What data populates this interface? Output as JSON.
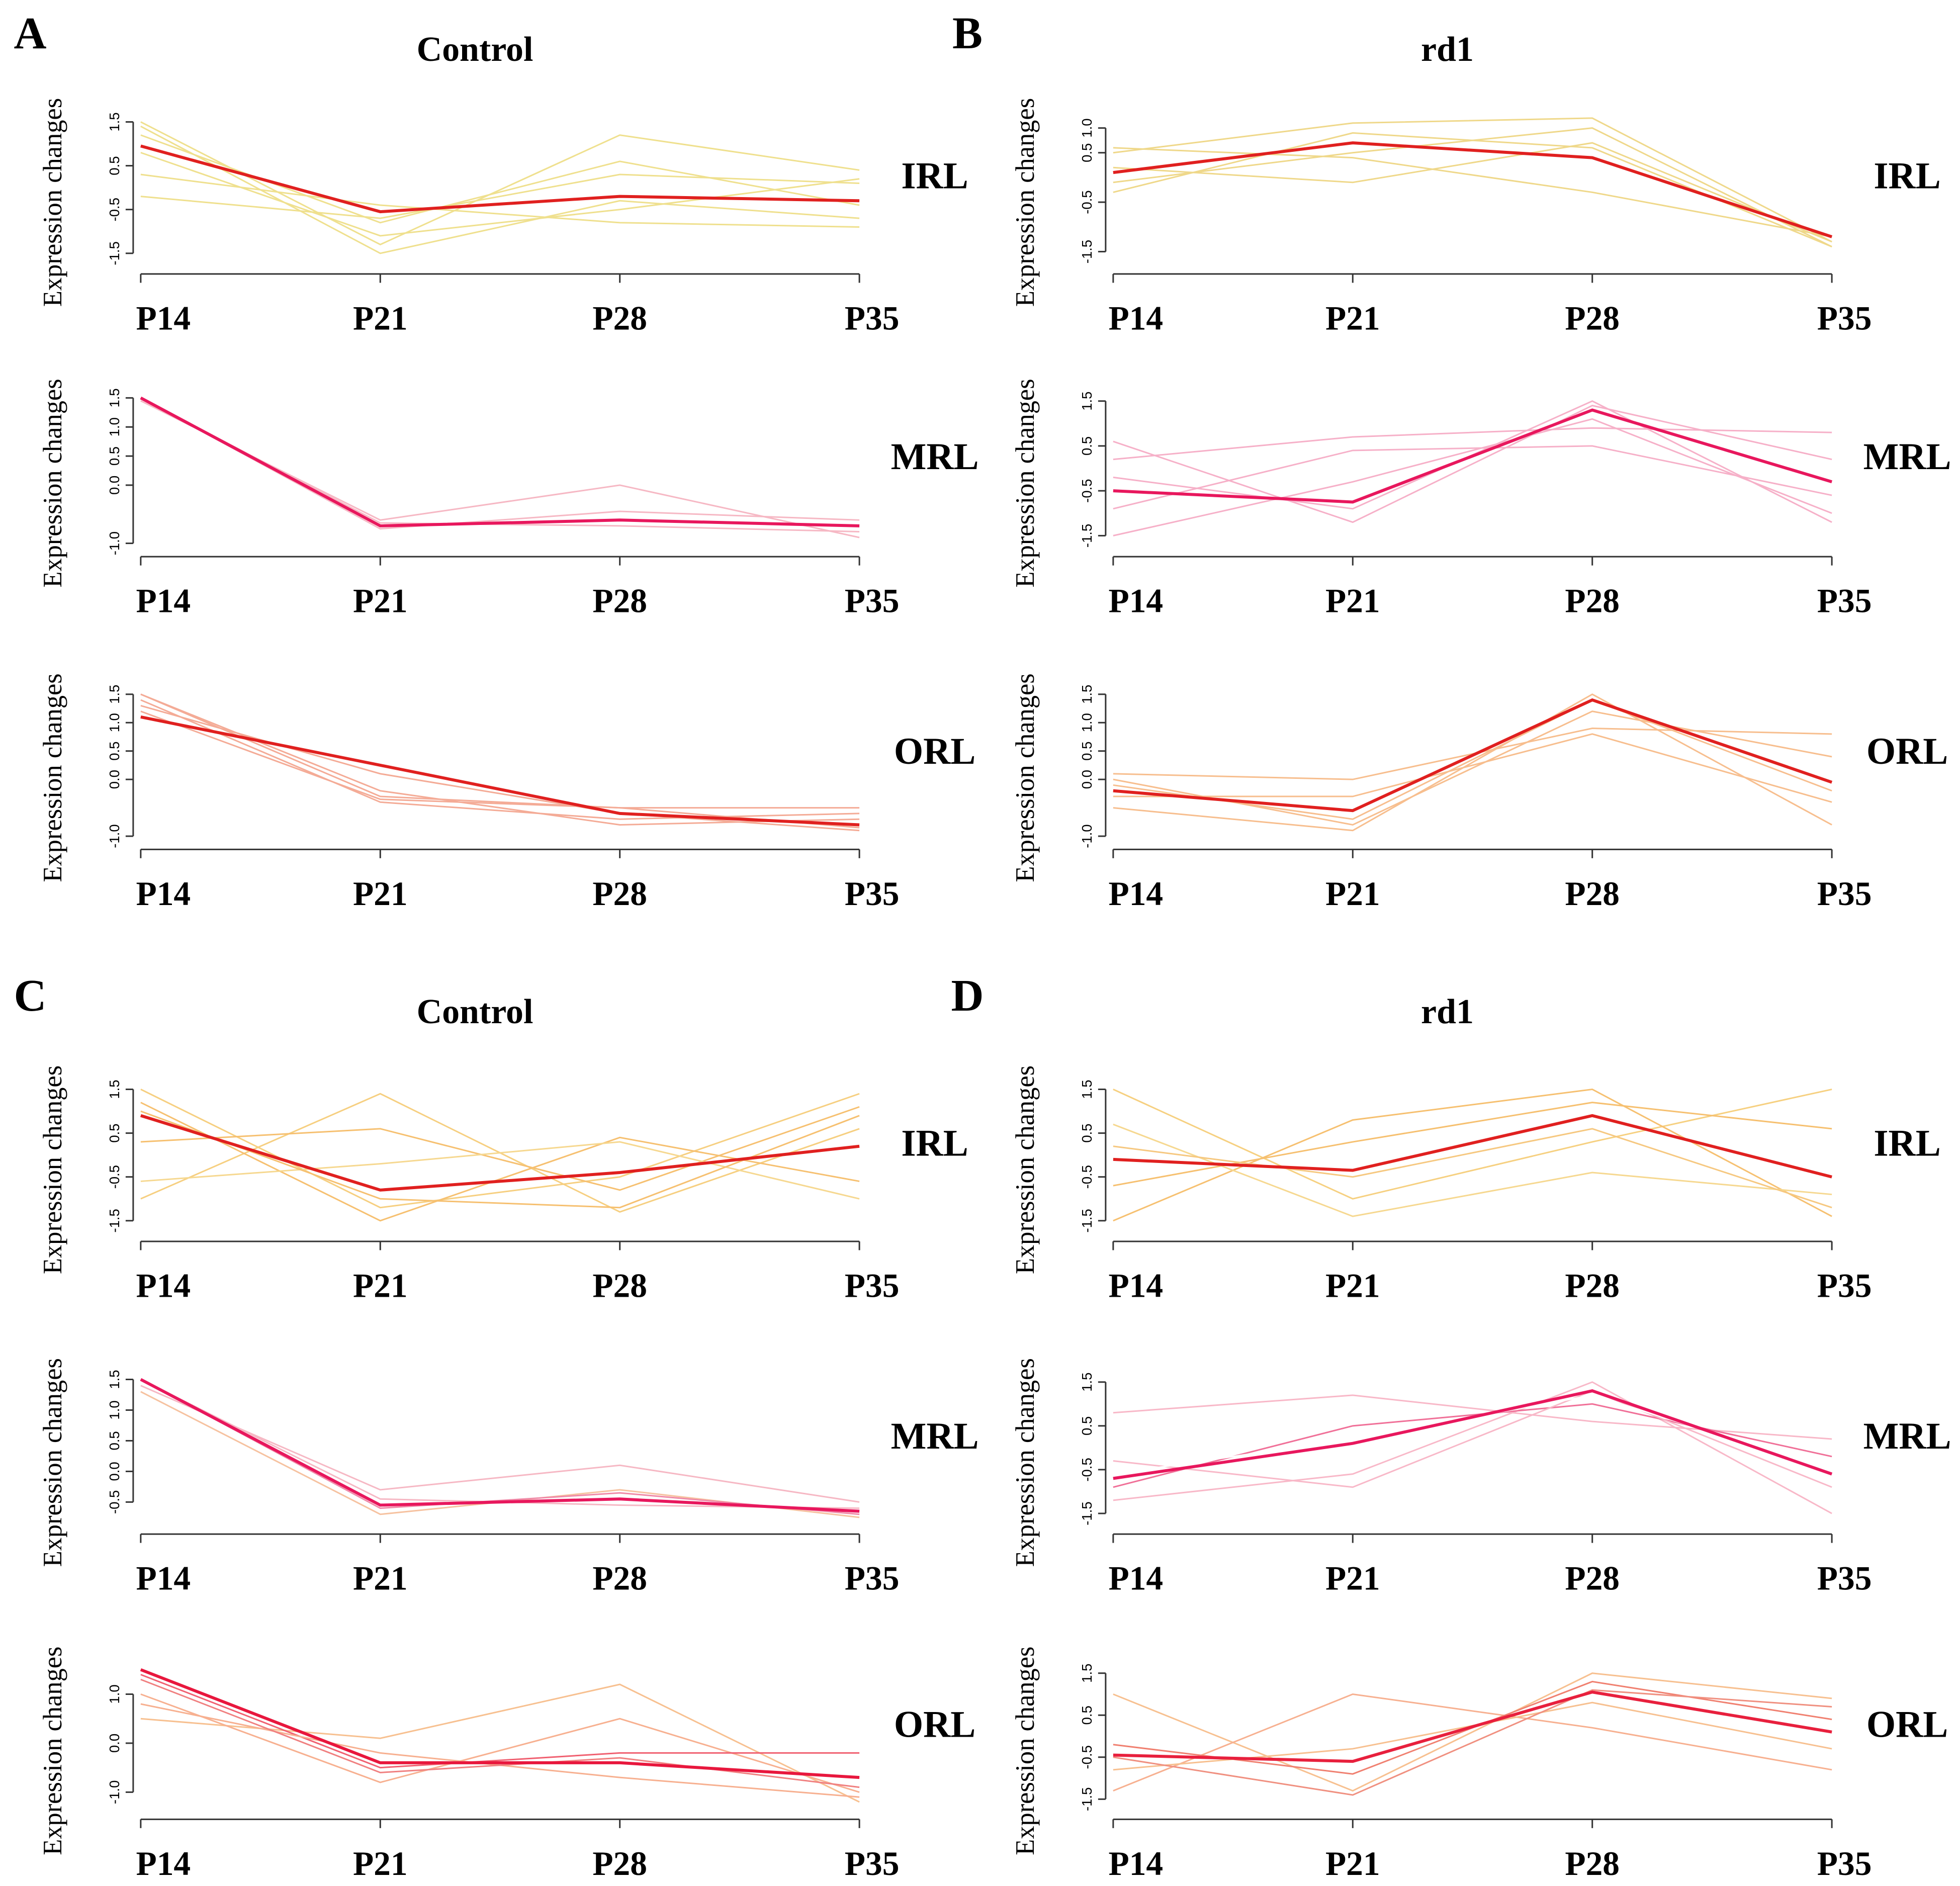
{
  "chart_data": [
    {
      "type": "line",
      "panel_label": "A",
      "title": "Control",
      "annotation": "IRL",
      "ylabel": "Expression changes",
      "categories": [
        "P14",
        "P21",
        "P28",
        "P35"
      ],
      "ylim": [
        -1.8,
        1.7
      ],
      "yticks": [
        -1.5,
        -0.5,
        0.5,
        1.5
      ],
      "series": [
        {
          "color": "#efe08e",
          "values": [
            1.5,
            -1.3,
            1.2,
            0.4
          ]
        },
        {
          "color": "#efe08e",
          "values": [
            1.2,
            -0.8,
            0.6,
            -0.4
          ]
        },
        {
          "color": "#efe08e",
          "values": [
            0.8,
            -1.1,
            -0.5,
            0.2
          ]
        },
        {
          "color": "#efe08e",
          "values": [
            0.3,
            -0.4,
            -0.8,
            -0.9
          ]
        },
        {
          "color": "#efe08e",
          "values": [
            -0.2,
            -0.7,
            0.3,
            0.1
          ]
        },
        {
          "color": "#efe08e",
          "values": [
            1.4,
            -1.5,
            -0.3,
            -0.7
          ]
        },
        {
          "color": "#e0201f",
          "values": [
            0.95,
            -0.55,
            -0.2,
            -0.3
          ]
        }
      ]
    },
    {
      "type": "line",
      "annotation": "MRL",
      "ylabel": "Expression changes",
      "categories": [
        "P14",
        "P21",
        "P28",
        "P35"
      ],
      "ylim": [
        -1.1,
        1.6
      ],
      "yticks": [
        {
          "value": -1,
          "label": "-1.0"
        },
        {
          "value": 0,
          "label": "0.0"
        },
        0.5,
        {
          "value": 1,
          "label": "1.0"
        },
        1.5
      ],
      "series": [
        {
          "color": "#f6b8c4",
          "values": [
            1.45,
            -0.6,
            0.0,
            -0.9
          ]
        },
        {
          "color": "#f6b8c4",
          "values": [
            1.5,
            -0.75,
            -0.45,
            -0.6
          ]
        },
        {
          "color": "#f6b8c4",
          "values": [
            1.5,
            -0.65,
            -0.7,
            -0.8
          ]
        },
        {
          "color": "#e8175d",
          "values": [
            1.5,
            -0.7,
            -0.6,
            -0.7
          ]
        }
      ]
    },
    {
      "type": "line",
      "annotation": "ORL",
      "ylabel": "Expression changes",
      "categories": [
        "P14",
        "P21",
        "P28",
        "P35"
      ],
      "ylim": [
        -1.1,
        1.6
      ],
      "yticks": [
        {
          "value": -1,
          "label": "-1.0"
        },
        {
          "value": 0,
          "label": "0.0"
        },
        0.5,
        {
          "value": 1,
          "label": "1.0"
        },
        1.5
      ],
      "series": [
        {
          "color": "#f4ab96",
          "values": [
            1.5,
            -0.3,
            -0.5,
            -0.5
          ]
        },
        {
          "color": "#f4ab96",
          "values": [
            1.4,
            -0.4,
            -0.7,
            -0.6
          ]
        },
        {
          "color": "#f4ab96",
          "values": [
            1.3,
            0.1,
            -0.6,
            -0.9
          ]
        },
        {
          "color": "#f4ab96",
          "values": [
            1.5,
            -0.2,
            -0.8,
            -0.7
          ]
        },
        {
          "color": "#f4ab96",
          "values": [
            1.2,
            -0.35,
            -0.5,
            -0.85
          ]
        },
        {
          "color": "#e0201f",
          "values": [
            1.1,
            0.25,
            -0.6,
            -0.8
          ]
        }
      ]
    },
    {
      "type": "line",
      "panel_label": "B",
      "title": "rd1",
      "annotation": "IRL",
      "ylabel": "Expression changes",
      "categories": [
        "P14",
        "P21",
        "P28",
        "P35"
      ],
      "ylim": [
        -1.8,
        1.3
      ],
      "yticks": [
        -1.5,
        -0.5,
        0.5,
        {
          "value": 1,
          "label": "1.0"
        }
      ],
      "series": [
        {
          "color": "#efd88a",
          "values": [
            0.5,
            1.1,
            1.2,
            -1.3
          ]
        },
        {
          "color": "#efd88a",
          "values": [
            -0.3,
            0.9,
            0.6,
            -1.4
          ]
        },
        {
          "color": "#efd88a",
          "values": [
            0.2,
            -0.1,
            0.7,
            -1.3
          ]
        },
        {
          "color": "#efd88a",
          "values": [
            0.6,
            0.4,
            -0.3,
            -1.2
          ]
        },
        {
          "color": "#efd88a",
          "values": [
            -0.1,
            0.5,
            1.0,
            -1.4
          ]
        },
        {
          "color": "#e0201f",
          "values": [
            0.1,
            0.7,
            0.4,
            -1.2
          ]
        }
      ]
    },
    {
      "type": "line",
      "annotation": "MRL",
      "ylabel": "Expression changes",
      "categories": [
        "P14",
        "P21",
        "P28",
        "P35"
      ],
      "ylim": [
        -1.8,
        1.7
      ],
      "yticks": [
        -1.5,
        -0.5,
        0.5,
        1.5
      ],
      "series": [
        {
          "color": "#f6b0c8",
          "values": [
            0.2,
            0.7,
            0.9,
            0.8
          ]
        },
        {
          "color": "#f6b0c8",
          "values": [
            -1.5,
            -0.3,
            1.1,
            -1.0
          ]
        },
        {
          "color": "#f6b0c8",
          "values": [
            0.6,
            -1.2,
            1.4,
            0.2
          ]
        },
        {
          "color": "#f6b0c8",
          "values": [
            -0.9,
            0.4,
            0.5,
            -0.6
          ]
        },
        {
          "color": "#f6b0c8",
          "values": [
            -0.2,
            -0.9,
            1.5,
            -1.2
          ]
        },
        {
          "color": "#e8175d",
          "values": [
            -0.5,
            -0.75,
            1.3,
            -0.3
          ]
        }
      ]
    },
    {
      "type": "line",
      "annotation": "ORL",
      "ylabel": "Expression changes",
      "categories": [
        "P14",
        "P21",
        "P28",
        "P35"
      ],
      "ylim": [
        -1.1,
        1.6
      ],
      "yticks": [
        {
          "value": -1,
          "label": "-1.0"
        },
        {
          "value": 0,
          "label": "0.0"
        },
        0.5,
        {
          "value": 1,
          "label": "1.0"
        },
        1.5
      ],
      "series": [
        {
          "color": "#f7be8e",
          "values": [
            0.1,
            0.0,
            0.9,
            0.8
          ]
        },
        {
          "color": "#f7be8e",
          "values": [
            -0.5,
            -0.9,
            1.5,
            -0.8
          ]
        },
        {
          "color": "#f7be8e",
          "values": [
            0.0,
            -0.8,
            1.2,
            0.4
          ]
        },
        {
          "color": "#f7be8e",
          "values": [
            -0.3,
            -0.3,
            0.8,
            -0.4
          ]
        },
        {
          "color": "#f7be8e",
          "values": [
            -0.1,
            -0.7,
            1.4,
            -0.2
          ]
        },
        {
          "color": "#e0201f",
          "values": [
            -0.2,
            -0.55,
            1.4,
            -0.05
          ]
        }
      ]
    },
    {
      "type": "line",
      "panel_label": "C",
      "title": "Control",
      "annotation": "IRL",
      "ylabel": "Expression changes",
      "categories": [
        "P14",
        "P21",
        "P28",
        "P35"
      ],
      "ylim": [
        -1.8,
        1.7
      ],
      "yticks": [
        -1.5,
        -0.5,
        0.5,
        1.5
      ],
      "series": [
        {
          "color": "#f6cf80",
          "values": [
            1.5,
            -1.2,
            -0.5,
            1.4
          ]
        },
        {
          "color": "#f6cf80",
          "values": [
            -1.0,
            1.4,
            -1.3,
            0.6
          ]
        },
        {
          "color": "#f6c070",
          "values": [
            1.2,
            -1.5,
            0.4,
            -0.6
          ]
        },
        {
          "color": "#f6c070",
          "values": [
            0.3,
            0.6,
            -0.8,
            1.1
          ]
        },
        {
          "color": "#f6d890",
          "values": [
            -0.6,
            -0.2,
            0.3,
            -1.0
          ]
        },
        {
          "color": "#f6c070",
          "values": [
            1.0,
            -1.0,
            -1.2,
            0.9
          ]
        },
        {
          "color": "#e0201f",
          "values": [
            0.9,
            -0.8,
            -0.4,
            0.2
          ]
        }
      ]
    },
    {
      "type": "line",
      "annotation": "MRL",
      "ylabel": "Expression changes",
      "categories": [
        "P14",
        "P21",
        "P28",
        "P35"
      ],
      "ylim": [
        -0.9,
        1.6
      ],
      "yticks": [
        -0.5,
        {
          "value": 0,
          "label": "0.0"
        },
        0.5,
        {
          "value": 1,
          "label": "1.0"
        },
        1.5
      ],
      "series": [
        {
          "color": "#f6b8c4",
          "values": [
            1.4,
            -0.3,
            0.1,
            -0.5
          ]
        },
        {
          "color": "#f6c2a0",
          "values": [
            1.3,
            -0.7,
            -0.3,
            -0.75
          ]
        },
        {
          "color": "#f6b8c4",
          "values": [
            1.5,
            -0.45,
            -0.55,
            -0.6
          ]
        },
        {
          "color": "#f08aa8",
          "values": [
            1.5,
            -0.6,
            -0.35,
            -0.7
          ]
        },
        {
          "color": "#e8175d",
          "values": [
            1.5,
            -0.55,
            -0.45,
            -0.65
          ]
        }
      ]
    },
    {
      "type": "line",
      "annotation": "ORL",
      "ylabel": "Expression changes",
      "categories": [
        "P14",
        "P21",
        "P28",
        "P35"
      ],
      "ylim": [
        -1.4,
        1.6
      ],
      "yticks": [
        {
          "value": -1,
          "label": "-1.0"
        },
        {
          "value": 0,
          "label": "0.0"
        },
        {
          "value": 1,
          "label": "1.0"
        }
      ],
      "series": [
        {
          "color": "#f7c090",
          "values": [
            0.5,
            0.1,
            1.2,
            -1.2
          ]
        },
        {
          "color": "#f7b090",
          "values": [
            1.0,
            -0.8,
            0.5,
            -1.0
          ]
        },
        {
          "color": "#f06070",
          "values": [
            1.4,
            -0.5,
            -0.2,
            -0.2
          ]
        },
        {
          "color": "#f7b090",
          "values": [
            0.8,
            -0.2,
            -0.7,
            -1.1
          ]
        },
        {
          "color": "#f08080",
          "values": [
            1.3,
            -0.6,
            -0.3,
            -0.9
          ]
        },
        {
          "color": "#e8173d",
          "values": [
            1.5,
            -0.4,
            -0.4,
            -0.7
          ]
        }
      ]
    },
    {
      "type": "line",
      "panel_label": "D",
      "title": "rd1",
      "annotation": "IRL",
      "ylabel": "Expression changes",
      "categories": [
        "P14",
        "P21",
        "P28",
        "P35"
      ],
      "ylim": [
        -1.8,
        1.7
      ],
      "yticks": [
        -1.5,
        -0.5,
        0.5,
        1.5
      ],
      "series": [
        {
          "color": "#f6d080",
          "values": [
            1.5,
            -1.0,
            0.3,
            1.5
          ]
        },
        {
          "color": "#f6c070",
          "values": [
            -1.5,
            0.8,
            1.5,
            -1.4
          ]
        },
        {
          "color": "#f6d890",
          "values": [
            0.7,
            -1.4,
            -0.4,
            -0.9
          ]
        },
        {
          "color": "#f6c070",
          "values": [
            -0.7,
            0.3,
            1.2,
            0.6
          ]
        },
        {
          "color": "#f6c880",
          "values": [
            0.2,
            -0.5,
            0.6,
            -1.2
          ]
        },
        {
          "color": "#e0201f",
          "values": [
            -0.1,
            -0.35,
            0.9,
            -0.5
          ]
        }
      ]
    },
    {
      "type": "line",
      "annotation": "MRL",
      "ylabel": "Expression changes",
      "categories": [
        "P14",
        "P21",
        "P28",
        "P35"
      ],
      "ylim": [
        -1.8,
        1.7
      ],
      "yticks": [
        -1.5,
        -0.5,
        0.5,
        1.5
      ],
      "series": [
        {
          "color": "#f8b8c8",
          "values": [
            0.8,
            1.2,
            0.6,
            0.2
          ]
        },
        {
          "color": "#f8b8c8",
          "values": [
            -1.2,
            -0.6,
            1.5,
            -1.5
          ]
        },
        {
          "color": "#f07098",
          "values": [
            -0.9,
            0.5,
            1.0,
            -0.2
          ]
        },
        {
          "color": "#f8b8c8",
          "values": [
            -0.3,
            -0.9,
            1.3,
            -0.9
          ]
        },
        {
          "color": "#ffffff",
          "values": [
            -0.6,
            0.2,
            1.2,
            -0.5
          ]
        },
        {
          "color": "#e8175d",
          "values": [
            -0.7,
            0.1,
            1.3,
            -0.6
          ]
        }
      ]
    },
    {
      "type": "line",
      "annotation": "ORL",
      "ylabel": "Expression changes",
      "categories": [
        "P14",
        "P21",
        "P28",
        "P35"
      ],
      "ylim": [
        -1.8,
        1.7
      ],
      "yticks": [
        -1.5,
        -0.5,
        0.5,
        1.5
      ],
      "series": [
        {
          "color": "#f7c090",
          "values": [
            1.0,
            -1.3,
            1.5,
            0.9
          ]
        },
        {
          "color": "#f7b090",
          "values": [
            -1.3,
            1.0,
            0.2,
            -0.8
          ]
        },
        {
          "color": "#f08070",
          "values": [
            -0.2,
            -0.9,
            1.3,
            0.4
          ]
        },
        {
          "color": "#f7c090",
          "values": [
            -0.8,
            -0.3,
            0.8,
            -0.3
          ]
        },
        {
          "color": "#f09080",
          "values": [
            -0.5,
            -1.4,
            1.1,
            0.7
          ]
        },
        {
          "color": "#e8203d",
          "values": [
            -0.45,
            -0.6,
            1.05,
            0.1
          ]
        }
      ]
    }
  ]
}
